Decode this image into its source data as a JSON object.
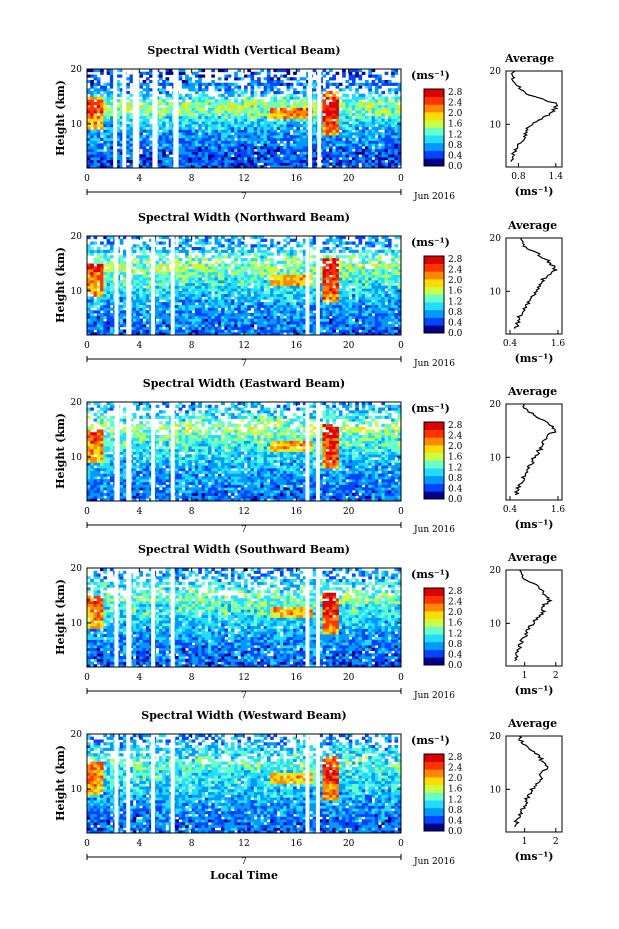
{
  "xlabel": "Local Time",
  "date_label": "Jun 2016",
  "date_tick": "7",
  "time_ticks": [
    "0",
    "4",
    "8",
    "12",
    "16",
    "20",
    "0"
  ],
  "height_ticks": [
    "20",
    "10"
  ],
  "height_label": "Height (km)",
  "unit_label": "(ms⁻¹)",
  "colorbar_ticks": [
    "2.8",
    "2.4",
    "2.0",
    "1.6",
    "1.2",
    "0.8",
    "0.4",
    "0.0"
  ],
  "average_title": "Average",
  "colors": {
    "colorbar": [
      "#00008b",
      "#0044ff",
      "#0099ff",
      "#22ddff",
      "#66ffcc",
      "#c8ff44",
      "#ffdd00",
      "#ff8800",
      "#ff3300",
      "#dd0000"
    ],
    "missing": "#ffffff"
  },
  "chart_data": [
    {
      "type": "heatmap",
      "title": "Spectral Width (Vertical Beam)",
      "xlabel": "Local Time",
      "ylabel": "Height (km)",
      "xlim": [
        0,
        24
      ],
      "ylim": [
        2,
        20
      ],
      "zlim": [
        0,
        3
      ],
      "gaps": [
        [
          2.0,
          2.3
        ],
        [
          2.7,
          3.0
        ],
        [
          3.5,
          4.0
        ],
        [
          5.0,
          5.4
        ],
        [
          6.6,
          7.0
        ],
        [
          16.9,
          17.2
        ],
        [
          17.6,
          17.9
        ]
      ],
      "avg_profile": {
        "title": "Average",
        "xlabel": "(ms⁻¹)",
        "xticks": [
          "0.8",
          "1.4"
        ],
        "xlim": [
          0.6,
          1.5
        ],
        "height": [
          3,
          4,
          5,
          6,
          7,
          8,
          9,
          10,
          11,
          12,
          13,
          14,
          15,
          16,
          17,
          18,
          19,
          20
        ],
        "value": [
          0.7,
          0.72,
          0.74,
          0.8,
          0.86,
          0.9,
          0.94,
          1.02,
          1.16,
          1.3,
          1.4,
          1.38,
          1.1,
          0.88,
          0.8,
          0.74,
          0.7,
          0.72
        ]
      }
    },
    {
      "type": "heatmap",
      "title": "Spectral Width (Northward Beam)",
      "xlabel": "Local Time",
      "ylabel": "Height (km)",
      "xlim": [
        0,
        24
      ],
      "ylim": [
        2,
        20
      ],
      "zlim": [
        0,
        3
      ],
      "gaps": [
        [
          2.1,
          2.4
        ],
        [
          3.0,
          3.4
        ],
        [
          4.9,
          5.2
        ],
        [
          6.4,
          6.7
        ],
        [
          16.7,
          17.0
        ],
        [
          17.5,
          17.8
        ]
      ],
      "avg_profile": {
        "title": "Average",
        "xlabel": "(ms⁻¹)",
        "xticks": [
          "0.4",
          "1.6"
        ],
        "xlim": [
          0.3,
          1.7
        ],
        "height": [
          3,
          4,
          5,
          6,
          7,
          8,
          9,
          10,
          11,
          12,
          13,
          14,
          15,
          16,
          17,
          18,
          19,
          20
        ],
        "value": [
          0.55,
          0.6,
          0.62,
          0.7,
          0.8,
          0.85,
          0.95,
          1.05,
          1.15,
          1.2,
          1.35,
          1.55,
          1.45,
          1.3,
          1.1,
          0.85,
          0.7,
          0.65
        ]
      }
    },
    {
      "type": "heatmap",
      "title": "Spectral Width (Eastward Beam)",
      "xlabel": "Local Time",
      "ylabel": "Height (km)",
      "xlim": [
        0,
        24
      ],
      "ylim": [
        2,
        20
      ],
      "zlim": [
        0,
        3
      ],
      "gaps": [
        [
          2.1,
          2.5
        ],
        [
          3.0,
          3.4
        ],
        [
          4.9,
          5.2
        ],
        [
          6.4,
          6.7
        ],
        [
          16.7,
          17.0
        ],
        [
          17.5,
          17.8
        ]
      ],
      "avg_profile": {
        "title": "Average",
        "xlabel": "(ms⁻¹)",
        "xticks": [
          "0.4",
          "1.6"
        ],
        "xlim": [
          0.3,
          1.7
        ],
        "height": [
          3,
          4,
          5,
          6,
          7,
          8,
          9,
          10,
          11,
          12,
          13,
          14,
          15,
          16,
          17,
          18,
          19,
          20
        ],
        "value": [
          0.55,
          0.6,
          0.66,
          0.72,
          0.8,
          0.85,
          0.95,
          1.0,
          1.1,
          1.2,
          1.25,
          1.35,
          1.55,
          1.45,
          1.2,
          1.0,
          0.8,
          0.7
        ]
      }
    },
    {
      "type": "heatmap",
      "title": "Spectral Width (Southward Beam)",
      "xlabel": "Local Time",
      "ylabel": "Height (km)",
      "xlim": [
        0,
        24
      ],
      "ylim": [
        2,
        20
      ],
      "zlim": [
        0,
        3
      ],
      "gaps": [
        [
          2.1,
          2.4
        ],
        [
          3.0,
          3.4
        ],
        [
          4.9,
          5.2
        ],
        [
          6.4,
          6.7
        ],
        [
          16.7,
          17.0
        ],
        [
          17.5,
          17.8
        ]
      ],
      "avg_profile": {
        "title": "Average",
        "xlabel": "(ms⁻¹)",
        "xticks": [
          "1",
          "2"
        ],
        "xlim": [
          0.4,
          2.2
        ],
        "height": [
          3,
          4,
          5,
          6,
          7,
          8,
          9,
          10,
          11,
          12,
          13,
          14,
          15,
          16,
          17,
          18,
          19,
          20
        ],
        "value": [
          0.7,
          0.75,
          0.8,
          0.85,
          0.95,
          1.05,
          1.15,
          1.25,
          1.4,
          1.6,
          1.5,
          1.8,
          1.7,
          1.6,
          1.4,
          1.1,
          0.9,
          0.8
        ]
      }
    },
    {
      "type": "heatmap",
      "title": "Spectral Width (Westward Beam)",
      "xlabel": "Local Time",
      "ylabel": "Height (km)",
      "xlim": [
        0,
        24
      ],
      "ylim": [
        2,
        20
      ],
      "zlim": [
        0,
        3
      ],
      "gaps": [
        [
          2.1,
          2.4
        ],
        [
          3.0,
          3.3
        ],
        [
          4.9,
          5.2
        ],
        [
          6.4,
          6.7
        ],
        [
          16.7,
          17.0
        ],
        [
          17.5,
          17.8
        ]
      ],
      "avg_profile": {
        "title": "Average",
        "xlabel": "(ms⁻¹)",
        "xticks": [
          "1",
          "2"
        ],
        "xlim": [
          0.4,
          2.2
        ],
        "height": [
          3,
          4,
          5,
          6,
          7,
          8,
          9,
          10,
          11,
          12,
          13,
          14,
          15,
          16,
          17,
          18,
          19,
          20
        ],
        "value": [
          0.7,
          0.75,
          0.8,
          0.9,
          1.0,
          1.05,
          1.15,
          1.25,
          1.4,
          1.55,
          1.5,
          1.7,
          1.6,
          1.5,
          1.3,
          1.1,
          0.9,
          0.8
        ]
      }
    }
  ]
}
